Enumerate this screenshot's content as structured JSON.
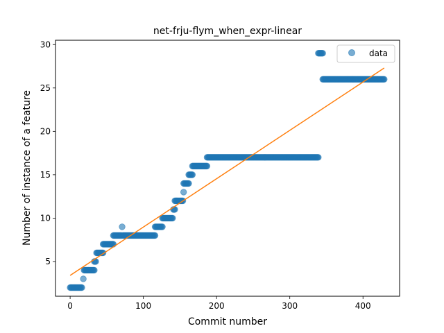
{
  "chart_data": {
    "type": "scatter",
    "title": "net-frju-flym_when_expr-linear",
    "xlabel": "Commit number",
    "ylabel": "Number of instance of a feature",
    "xlim": [
      -20,
      450
    ],
    "ylim": [
      1,
      30.5
    ],
    "xticks": [
      0,
      100,
      200,
      300,
      400
    ],
    "yticks": [
      5,
      10,
      15,
      20,
      25,
      30
    ],
    "grid": false,
    "legend_position": "top-right",
    "series": [
      {
        "name": "data",
        "kind": "points",
        "color": "#1f77b4",
        "segments": [
          {
            "x_start": 0,
            "x_end": 16,
            "y": 2
          },
          {
            "x_start": 18,
            "x_end": 18,
            "y": 3
          },
          {
            "x_start": 19,
            "x_end": 33,
            "y": 4
          },
          {
            "x_start": 33,
            "x_end": 35,
            "y": 5
          },
          {
            "x_start": 36,
            "x_end": 45,
            "y": 6
          },
          {
            "x_start": 45,
            "x_end": 59,
            "y": 7
          },
          {
            "x_start": 59,
            "x_end": 70,
            "y": 8
          },
          {
            "x_start": 71,
            "x_end": 71,
            "y": 9
          },
          {
            "x_start": 72,
            "x_end": 116,
            "y": 8
          },
          {
            "x_start": 116,
            "x_end": 126,
            "y": 9
          },
          {
            "x_start": 126,
            "x_end": 140,
            "y": 10
          },
          {
            "x_start": 141,
            "x_end": 143,
            "y": 11
          },
          {
            "x_start": 143,
            "x_end": 154,
            "y": 12
          },
          {
            "x_start": 155,
            "x_end": 155,
            "y": 13
          },
          {
            "x_start": 155,
            "x_end": 162,
            "y": 14
          },
          {
            "x_start": 162,
            "x_end": 167,
            "y": 15
          },
          {
            "x_start": 167,
            "x_end": 187,
            "y": 16
          },
          {
            "x_start": 187,
            "x_end": 339,
            "y": 17
          },
          {
            "x_start": 339,
            "x_end": 345,
            "y": 29
          },
          {
            "x_start": 345,
            "x_end": 429,
            "y": 26
          }
        ]
      },
      {
        "name": "",
        "kind": "line",
        "color": "#ff7f0e",
        "points": [
          [
            0,
            3.4
          ],
          [
            429,
            27.3
          ]
        ]
      }
    ]
  }
}
